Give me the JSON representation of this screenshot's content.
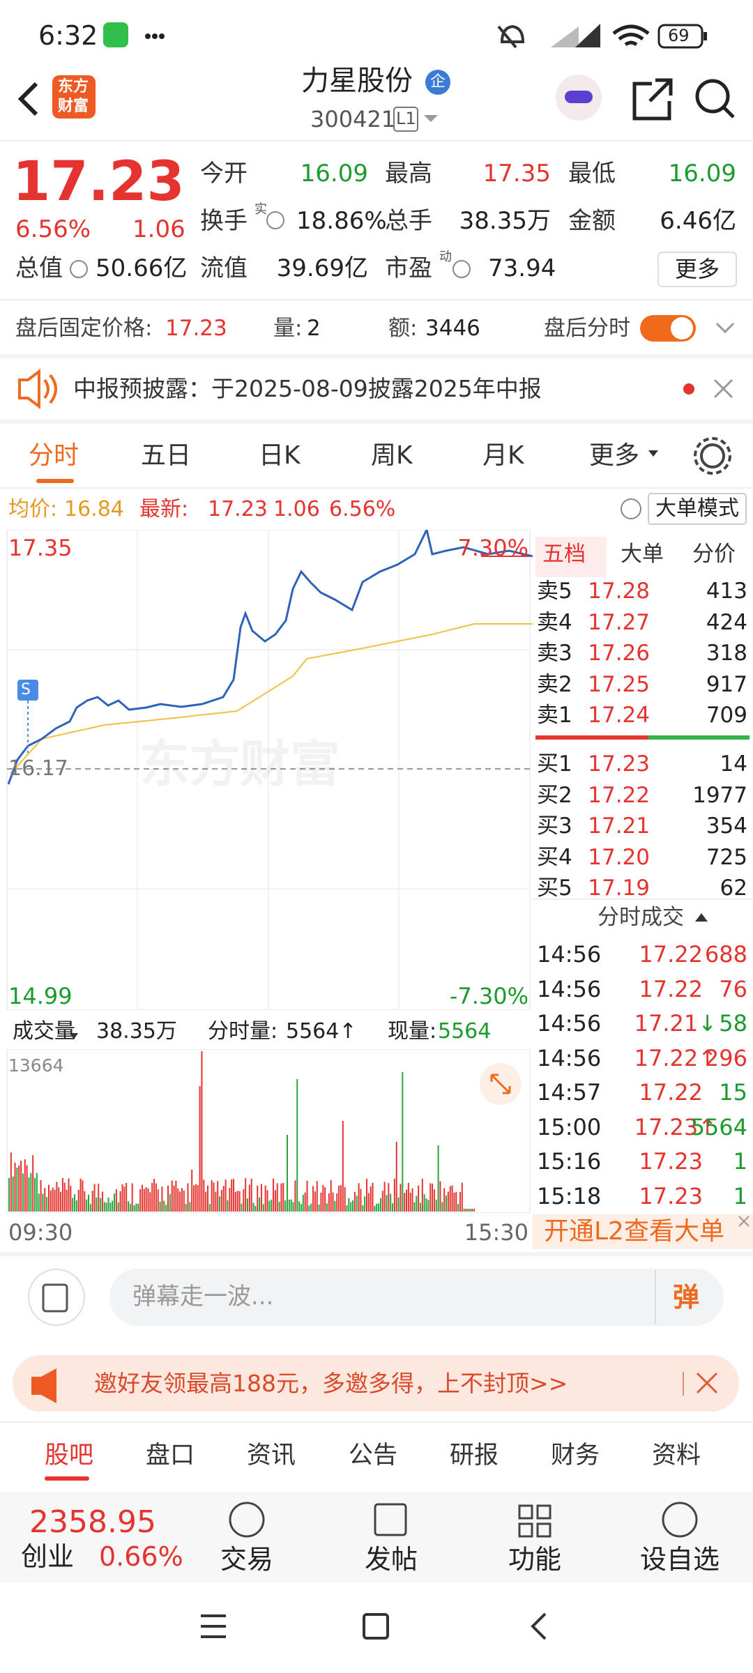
{
  "status_bar": {
    "time": "6:32",
    "battery": "69"
  },
  "header": {
    "logo": [
      "东方",
      "财富"
    ],
    "title": "力星股份",
    "badge": "企",
    "code": "300421",
    "level": "L1"
  },
  "quote": {
    "price": "17.23",
    "change_pct": "6.56%",
    "change": "1.06",
    "fields": [
      {
        "label": "今开",
        "value": "16.09",
        "color": "#1a9b2b"
      },
      {
        "label": "最高",
        "value": "17.35",
        "color": "#e5332f"
      },
      {
        "label": "最低",
        "value": "16.09",
        "color": "#1a9b2b"
      },
      {
        "label": "换手",
        "sup": "实",
        "value": "18.86%",
        "color": "#222222"
      },
      {
        "label": "总手",
        "value": "38.35万",
        "color": "#222222"
      },
      {
        "label": "金额",
        "value": "6.46亿",
        "color": "#222222"
      },
      {
        "label": "总值",
        "value": "50.66亿",
        "color": "#222222"
      },
      {
        "label": "流值",
        "value": "39.69亿",
        "color": "#222222"
      },
      {
        "label": "市盈",
        "sup": "动",
        "value": "73.94",
        "color": "#222222"
      }
    ],
    "more": "更多"
  },
  "after_hours": {
    "price_label": "盘后固定价格:",
    "price": "17.23",
    "volume_label": "量:",
    "volume": "2",
    "amount_label": "额:",
    "amount": "3446",
    "toggle_label": "盘后分时"
  },
  "notice": {
    "text": "中报预披露：于2025-08-09披露2025年中报"
  },
  "tabs": [
    "分时",
    "五日",
    "日K",
    "周K",
    "月K",
    "更多"
  ],
  "summary": {
    "avg_label": "均价:",
    "avg": "16.84",
    "last_label": "最新:",
    "last": "17.23",
    "change": "1.06",
    "change_pct": "6.56%",
    "mode": "大单模式"
  },
  "chart": {
    "y_top": "17.35",
    "y_mid": "16.17",
    "y_bottom": "14.99",
    "pct_top": "7.30%",
    "pct_bottom": "-7.30%",
    "watermark": "东方财富",
    "marker": "S",
    "volume_max": "13664",
    "time_start": "09:30",
    "time_end": "15:30"
  },
  "volume_bar": {
    "label": "成交量",
    "total": "38.35万",
    "period_label": "分时量:",
    "period": "5564↑",
    "current_label": "现量:",
    "current": "5564"
  },
  "order_book": {
    "tabs": [
      "五档",
      "大单",
      "分价"
    ],
    "asks": [
      {
        "label": "卖5",
        "price": "17.28",
        "volume": "413"
      },
      {
        "label": "卖4",
        "price": "17.27",
        "volume": "424"
      },
      {
        "label": "卖3",
        "price": "17.26",
        "volume": "318"
      },
      {
        "label": "卖2",
        "price": "17.25",
        "volume": "917"
      },
      {
        "label": "卖1",
        "price": "17.24",
        "volume": "709"
      }
    ],
    "bids": [
      {
        "label": "买1",
        "price": "17.23",
        "volume": "14"
      },
      {
        "label": "买2",
        "price": "17.22",
        "volume": "1977"
      },
      {
        "label": "买3",
        "price": "17.21",
        "volume": "354"
      },
      {
        "label": "买4",
        "price": "17.20",
        "volume": "725"
      },
      {
        "label": "买5",
        "price": "17.19",
        "volume": "62"
      }
    ],
    "trades_title": "分时成交",
    "trades": [
      {
        "time": "14:56",
        "price": "17.22",
        "volume": "688",
        "color": "#e5332f"
      },
      {
        "time": "14:56",
        "price": "17.22",
        "volume": "76",
        "color": "#e5332f"
      },
      {
        "time": "14:56",
        "price": "17.21",
        "arrow": "↓",
        "volume": "58",
        "color": "#1a9b2b"
      },
      {
        "time": "14:56",
        "price": "17.22",
        "arrow": "↑",
        "volume": "296",
        "color": "#e5332f"
      },
      {
        "time": "14:57",
        "price": "17.22",
        "volume": "15",
        "color": "#1a9b2b"
      },
      {
        "time": "15:00",
        "price": "17.23",
        "arrow": "↑",
        "volume": "5564",
        "color": "#1a9b2b"
      },
      {
        "time": "15:16",
        "price": "17.23",
        "volume": "1",
        "color": "#1a9b2b"
      },
      {
        "time": "15:18",
        "price": "17.23",
        "volume": "1",
        "color": "#1a9b2b"
      }
    ],
    "l2": "开通L2查看大单"
  },
  "comment": {
    "placeholder": "弹幕走一波...",
    "button": "弹"
  },
  "banner": {
    "text": "邀好友领最高188元，多邀多得，上不封顶>>"
  },
  "sections": [
    "股吧",
    "盘口",
    "资讯",
    "公告",
    "研报",
    "财务",
    "资料"
  ],
  "bottom_nav": {
    "index_value": "2358.95",
    "index_name": "创业",
    "index_change": "0.66%",
    "items": [
      "交易",
      "发帖",
      "功能",
      "设自选"
    ]
  }
}
